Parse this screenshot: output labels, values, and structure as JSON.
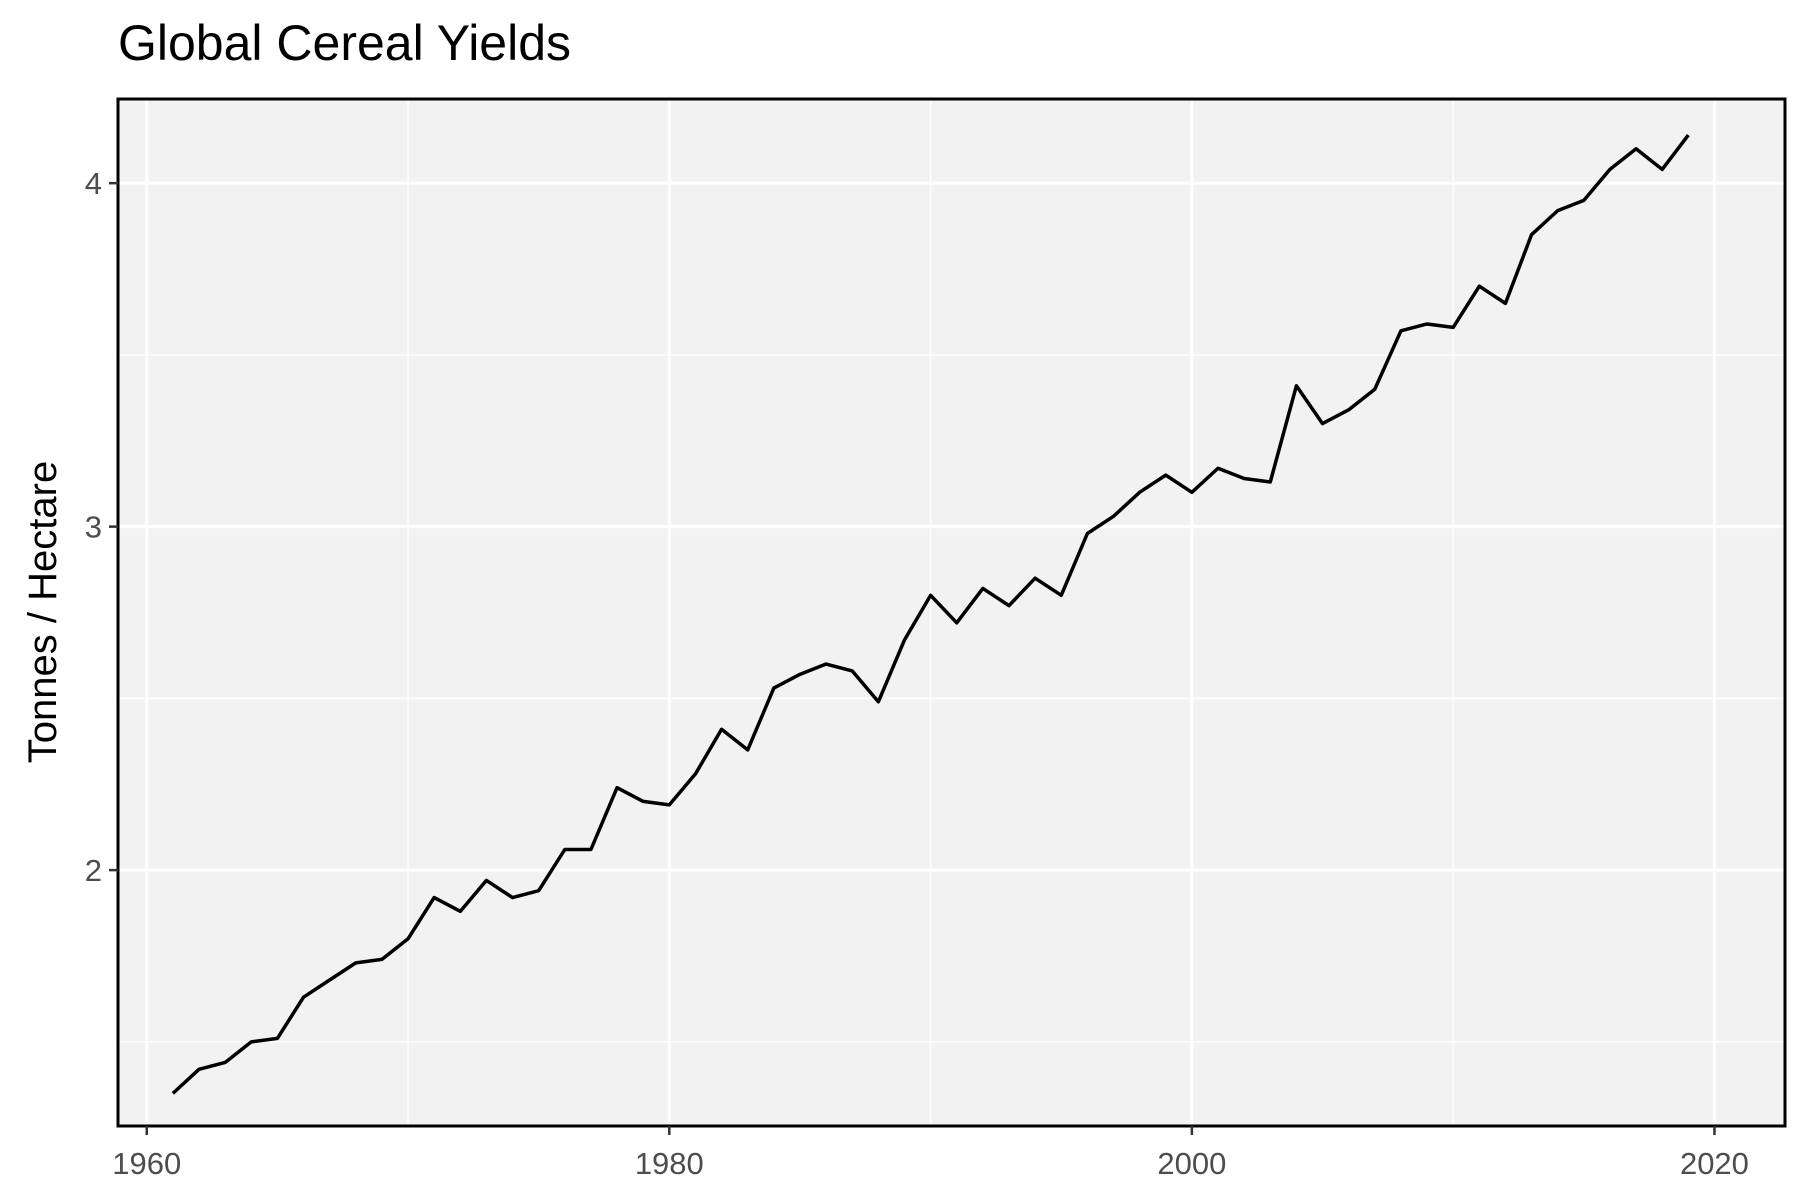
{
  "chart_data": {
    "type": "line",
    "title": "Global Cereal Yields",
    "xlabel": "",
    "ylabel": "Tonnes / Hectare",
    "xlim": [
      1958.9,
      2022.7
    ],
    "ylim": [
      1.255,
      4.245
    ],
    "x_ticks": [
      1960,
      1980,
      2000,
      2020
    ],
    "x_tick_labels": [
      "1960",
      "1980",
      "2000",
      "2020"
    ],
    "x_minor_ticks": [
      1970,
      1990,
      2010
    ],
    "y_ticks": [
      2,
      3,
      4
    ],
    "y_tick_labels": [
      "2",
      "3",
      "4"
    ],
    "y_minor_ticks": [
      1.5,
      2.5,
      3.5
    ],
    "grid": true,
    "colors": {
      "panel_background": "#f2f2f2",
      "grid": "#ffffff",
      "line": "#000000",
      "border": "#000000"
    },
    "series": [
      {
        "x": [
          1961,
          1962,
          1963,
          1964,
          1965,
          1966,
          1967,
          1968,
          1969,
          1970,
          1971,
          1972,
          1973,
          1974,
          1975,
          1976,
          1977,
          1978,
          1979,
          1980,
          1981,
          1982,
          1983,
          1984,
          1985,
          1986,
          1987,
          1988,
          1989,
          1990,
          1991,
          1992,
          1993,
          1994,
          1995,
          1996,
          1997,
          1998,
          1999,
          2000,
          2001,
          2002,
          2003,
          2004,
          2005,
          2006,
          2007,
          2008,
          2009,
          2010,
          2011,
          2012,
          2013,
          2014,
          2015,
          2016,
          2017,
          2018,
          2019
        ],
        "values": [
          1.35,
          1.42,
          1.44,
          1.5,
          1.51,
          1.63,
          1.68,
          1.73,
          1.74,
          1.8,
          1.92,
          1.88,
          1.97,
          1.92,
          1.94,
          2.06,
          2.06,
          2.24,
          2.2,
          2.19,
          2.28,
          2.41,
          2.35,
          2.53,
          2.57,
          2.6,
          2.58,
          2.49,
          2.67,
          2.8,
          2.72,
          2.82,
          2.77,
          2.85,
          2.8,
          2.98,
          3.03,
          3.1,
          3.15,
          3.1,
          3.17,
          3.14,
          3.13,
          3.41,
          3.3,
          3.34,
          3.4,
          3.57,
          3.59,
          3.58,
          3.7,
          3.65,
          3.85,
          3.92,
          3.95,
          4.04,
          4.1,
          4.04,
          4.14
        ]
      }
    ]
  }
}
